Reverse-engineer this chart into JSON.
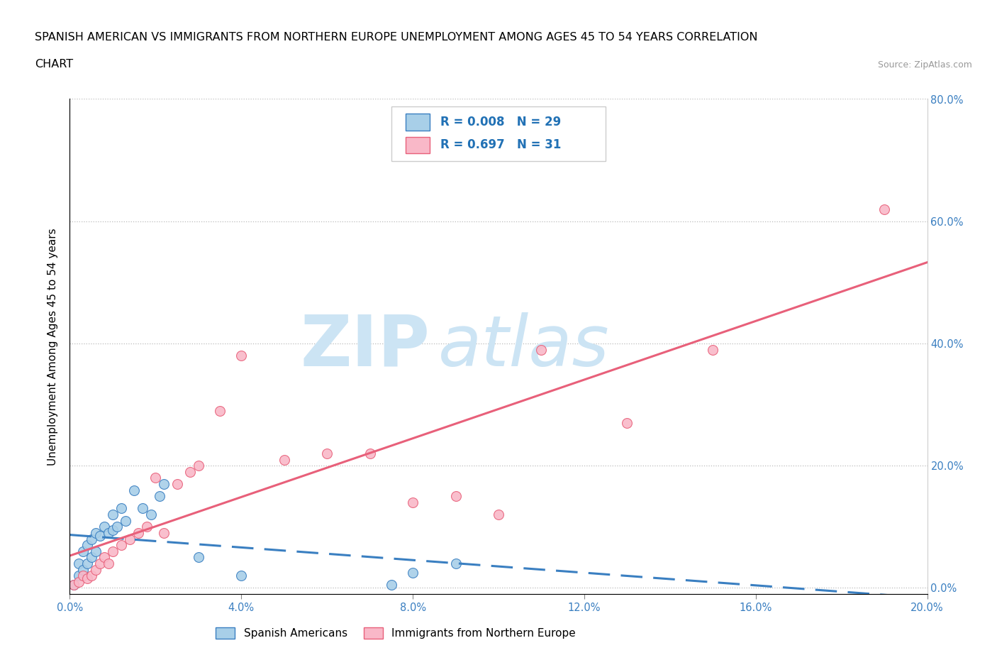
{
  "title_line1": "SPANISH AMERICAN VS IMMIGRANTS FROM NORTHERN EUROPE UNEMPLOYMENT AMONG AGES 45 TO 54 YEARS CORRELATION",
  "title_line2": "CHART",
  "source_text": "Source: ZipAtlas.com",
  "ylabel": "Unemployment Among Ages 45 to 54 years",
  "xlim": [
    0.0,
    0.2
  ],
  "ylim": [
    -0.01,
    0.8
  ],
  "xticks": [
    0.0,
    0.04,
    0.08,
    0.12,
    0.16,
    0.2
  ],
  "yticks": [
    0.0,
    0.2,
    0.4,
    0.6,
    0.8
  ],
  "xticklabels": [
    "0.0%",
    "4.0%",
    "8.0%",
    "12.0%",
    "16.0%",
    "20.0%"
  ],
  "right_yticklabels": [
    "0.0%",
    "20.0%",
    "40.0%",
    "60.0%",
    "80.0%"
  ],
  "series1_color": "#a8cfe8",
  "series2_color": "#f9b8c8",
  "trendline1_color": "#3a7fc1",
  "trendline2_color": "#e8607a",
  "R1": 0.008,
  "N1": 29,
  "R2": 0.697,
  "N2": 31,
  "legend_color": "#2171b5",
  "watermark_top": "ZIP",
  "watermark_bottom": "atlas",
  "watermark_color": "#cce4f4",
  "spanish_americans_x": [
    0.001,
    0.002,
    0.002,
    0.003,
    0.003,
    0.004,
    0.004,
    0.005,
    0.005,
    0.006,
    0.006,
    0.007,
    0.008,
    0.009,
    0.01,
    0.01,
    0.011,
    0.012,
    0.013,
    0.015,
    0.017,
    0.019,
    0.021,
    0.022,
    0.03,
    0.04,
    0.075,
    0.08,
    0.09
  ],
  "spanish_americans_y": [
    0.005,
    0.02,
    0.04,
    0.03,
    0.06,
    0.04,
    0.07,
    0.05,
    0.08,
    0.06,
    0.09,
    0.085,
    0.1,
    0.09,
    0.095,
    0.12,
    0.1,
    0.13,
    0.11,
    0.16,
    0.13,
    0.12,
    0.15,
    0.17,
    0.05,
    0.02,
    0.005,
    0.025,
    0.04
  ],
  "northern_europe_x": [
    0.001,
    0.002,
    0.003,
    0.004,
    0.005,
    0.006,
    0.007,
    0.008,
    0.009,
    0.01,
    0.012,
    0.014,
    0.016,
    0.018,
    0.02,
    0.022,
    0.025,
    0.028,
    0.03,
    0.035,
    0.04,
    0.05,
    0.06,
    0.07,
    0.08,
    0.09,
    0.1,
    0.11,
    0.13,
    0.15,
    0.19
  ],
  "northern_europe_y": [
    0.005,
    0.01,
    0.02,
    0.015,
    0.02,
    0.03,
    0.04,
    0.05,
    0.04,
    0.06,
    0.07,
    0.08,
    0.09,
    0.1,
    0.18,
    0.09,
    0.17,
    0.19,
    0.2,
    0.29,
    0.38,
    0.21,
    0.22,
    0.22,
    0.14,
    0.15,
    0.12,
    0.39,
    0.27,
    0.39,
    0.62
  ]
}
